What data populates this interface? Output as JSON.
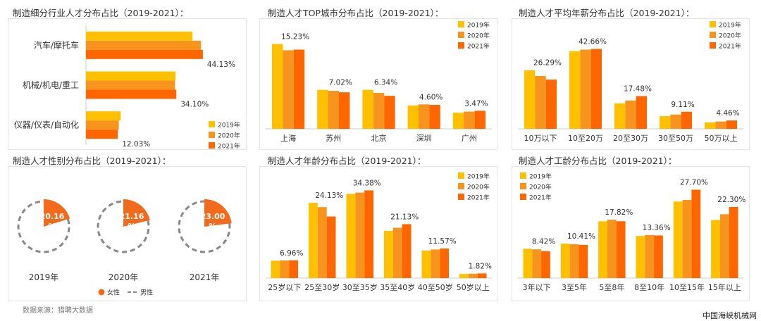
{
  "colors": {
    "y2019": "#FFC000",
    "y2020": "#F7941D",
    "y2021": "#FF6600",
    "female": "#F26B1D",
    "male": "#888888"
  },
  "legend_years": [
    "2019年",
    "2020年",
    "2021年"
  ],
  "source": "数据来源：猎聘大数据",
  "watermark": "中国海峡机械网",
  "chart_data": [
    {
      "id": "industry",
      "type": "bar",
      "orientation": "horizontal",
      "title": "制造细分行业人才分布占比（2019-2021）：",
      "categories": [
        "汽车/摩托车",
        "机械/机电/重工",
        "仪器/仪表/自动化"
      ],
      "series": [
        {
          "name": "2019年",
          "values": [
            40.2,
            33.8,
            13.1
          ]
        },
        {
          "name": "2020年",
          "values": [
            43.4,
            33.6,
            12.4
          ]
        },
        {
          "name": "2021年",
          "values": [
            44.13,
            34.1,
            12.03
          ]
        }
      ],
      "labels": [
        "44.13%",
        "34.10%",
        "12.03%"
      ],
      "xlim": [
        0,
        50
      ],
      "legend": "bottom-right"
    },
    {
      "id": "city",
      "type": "bar",
      "title": "制造人才TOP城市分布占比（2019-2021）：",
      "categories": [
        "上海",
        "苏州",
        "北京",
        "深圳",
        "广州"
      ],
      "series": [
        {
          "name": "2019年",
          "values": [
            16.3,
            7.5,
            7.5,
            4.5,
            3.1
          ]
        },
        {
          "name": "2020年",
          "values": [
            15.1,
            7.3,
            6.9,
            4.7,
            3.3
          ]
        },
        {
          "name": "2021年",
          "values": [
            15.23,
            7.02,
            6.34,
            4.6,
            3.47
          ]
        }
      ],
      "labels": [
        "15.23%",
        "7.02%",
        "6.34%",
        "4.60%",
        "3.47%"
      ],
      "ylim": [
        0,
        18
      ],
      "legend": "top-right"
    },
    {
      "id": "salary",
      "type": "bar",
      "title": "制造人才平均年薪分布占比（2019-2021）：",
      "categories": [
        "10万以下",
        "10至20万",
        "20至30万",
        "30至50万",
        "50万以上"
      ],
      "series": [
        {
          "name": "2019年",
          "values": [
            31.3,
            41.5,
            13.6,
            6.8,
            3.4
          ]
        },
        {
          "name": "2020年",
          "values": [
            28.2,
            42.3,
            15.1,
            7.6,
            3.9
          ]
        },
        {
          "name": "2021年",
          "values": [
            26.29,
            42.66,
            17.48,
            9.11,
            4.46
          ]
        }
      ],
      "labels": [
        "26.29%",
        "42.66%",
        "17.48%",
        "9.11%",
        "4.46%"
      ],
      "ylim": [
        0,
        50
      ],
      "legend": "top-right"
    },
    {
      "id": "gender",
      "type": "pie",
      "title": "制造人才性别分布占比（2019-2021）：",
      "years": [
        "2019年",
        "2020年",
        "2021年"
      ],
      "female": [
        20.16,
        21.16,
        23.0
      ],
      "male": [
        79.84,
        78.84,
        77.0
      ],
      "labels": [
        "20.16%",
        "21.16%",
        "23.00%"
      ],
      "legend_female": "女性",
      "legend_male": "男性",
      "legend": "bottom"
    },
    {
      "id": "age",
      "type": "bar",
      "title": "制造人才年龄分布占比（2019-2021）：",
      "categories": [
        "25岁以下",
        "25至30岁",
        "30至35岁",
        "35至40岁",
        "40至50岁",
        "50岁以上"
      ],
      "series": [
        {
          "name": "2019年",
          "values": [
            6.8,
            29.5,
            33.0,
            18.5,
            10.8,
            1.6
          ]
        },
        {
          "name": "2020年",
          "values": [
            6.9,
            27.8,
            33.5,
            19.7,
            11.2,
            1.7
          ]
        },
        {
          "name": "2021年",
          "values": [
            6.96,
            24.13,
            34.38,
            21.13,
            11.57,
            1.82
          ]
        }
      ],
      "labels": [
        "6.96%",
        "24.13%",
        "34.38%",
        "21.13%",
        "11.57%",
        "1.82%"
      ],
      "ylim": [
        0,
        40
      ],
      "legend": "top-right"
    },
    {
      "id": "tenure",
      "type": "bar",
      "title": "制造人才工龄分布占比（2019-2021）：",
      "categories": [
        "3年以下",
        "3至5年",
        "5至8年",
        "8至10年",
        "10至15年",
        "15年以上"
      ],
      "series": [
        {
          "name": "2019年",
          "values": [
            9.2,
            10.8,
            17.8,
            13.2,
            24.0,
            18.2
          ]
        },
        {
          "name": "2020年",
          "values": [
            9.0,
            10.6,
            18.3,
            13.5,
            24.5,
            20.0
          ]
        },
        {
          "name": "2021年",
          "values": [
            8.42,
            10.41,
            17.82,
            13.36,
            27.7,
            22.3
          ]
        }
      ],
      "labels": [
        "8.42%",
        "10.41%",
        "17.82%",
        "13.36%",
        "27.70%",
        "22.30%"
      ],
      "ylim": [
        0,
        32
      ],
      "legend": "top-left"
    }
  ]
}
